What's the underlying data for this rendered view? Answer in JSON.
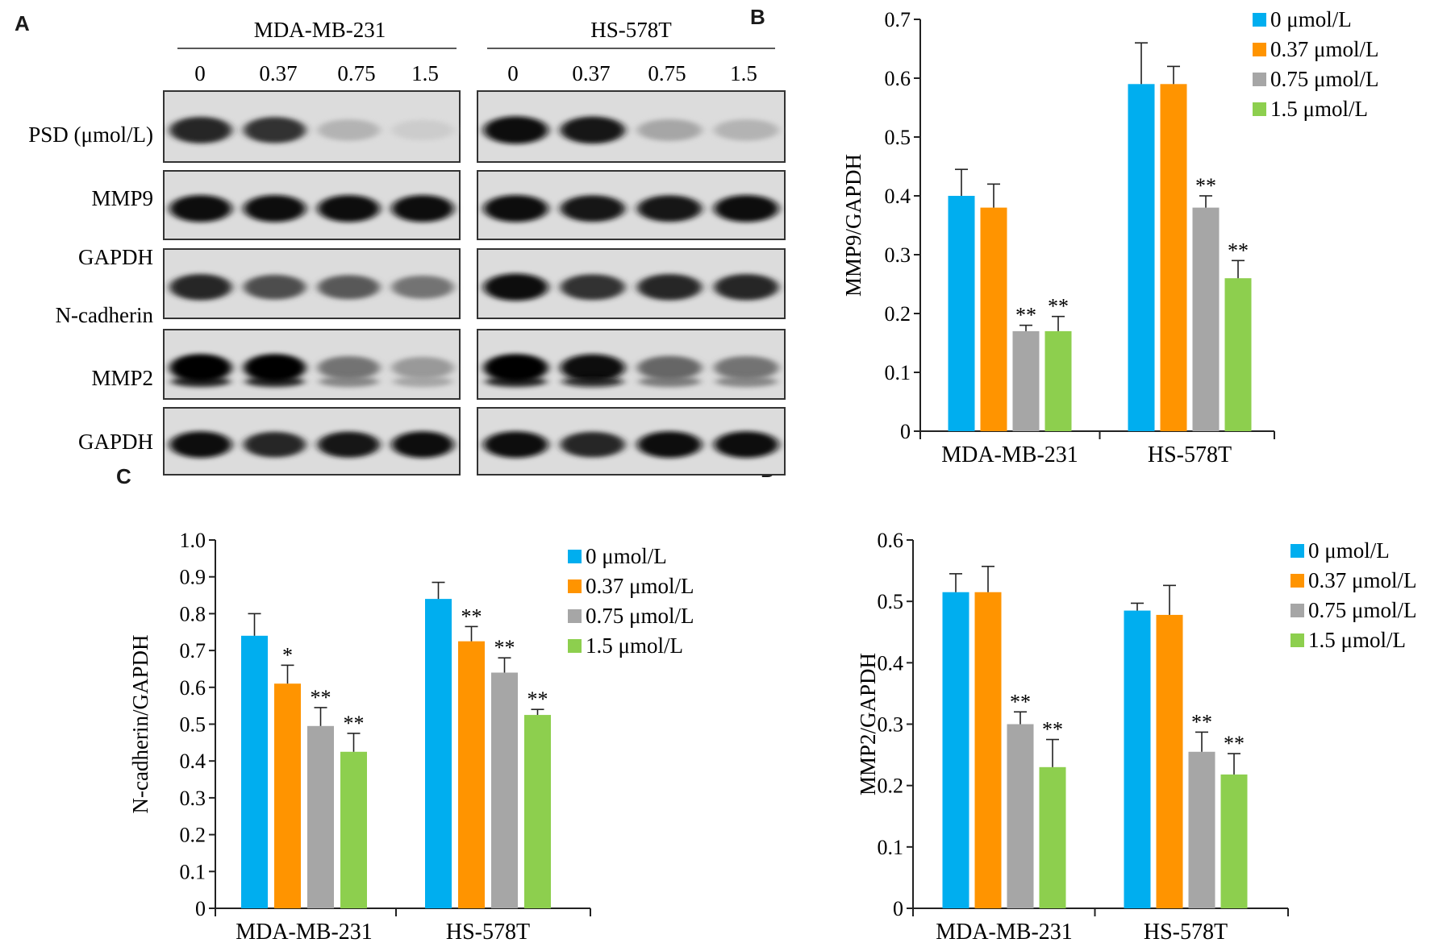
{
  "panel_letters": {
    "a": "A",
    "b": "B",
    "c": "C",
    "d": "D"
  },
  "blot": {
    "groups": [
      "MDA-MB-231",
      "HS-578T"
    ],
    "lanes": [
      "0",
      "0.37",
      "0.75",
      "1.5"
    ],
    "row_labels": [
      "PSD (μmol/L)",
      "MMP9",
      "GAPDH",
      "N-cadherin",
      "MMP2",
      "GAPDH"
    ],
    "rows": [
      {
        "intensity": [
          [
            0.85,
            0.8,
            0.3,
            0.2
          ],
          [
            0.95,
            0.9,
            0.35,
            0.3
          ]
        ]
      },
      {
        "intensity": [
          [
            0.95,
            0.95,
            0.95,
            0.95
          ],
          [
            0.95,
            0.9,
            0.9,
            0.95
          ]
        ]
      },
      {
        "intensity": [
          [
            0.85,
            0.7,
            0.65,
            0.55
          ],
          [
            0.95,
            0.8,
            0.85,
            0.85
          ]
        ]
      },
      {
        "intensity": [
          [
            1.0,
            1.0,
            0.55,
            0.4
          ],
          [
            1.0,
            0.95,
            0.6,
            0.55
          ]
        ]
      },
      {
        "intensity": [
          [
            0.95,
            0.85,
            0.9,
            0.95
          ],
          [
            0.95,
            0.85,
            0.95,
            0.95
          ]
        ]
      }
    ]
  },
  "colors": {
    "series": [
      "#00aeef",
      "#ff9400",
      "#a6a6a6",
      "#8dcf4e"
    ]
  },
  "legend": [
    "0 μmol/L",
    "0.37 μmol/L",
    "0.75 μmol/L",
    "1.5 μmol/L"
  ],
  "chart_data": [
    {
      "id": "B",
      "type": "bar",
      "categories": [
        "MDA-MB-231",
        "HS-578T"
      ],
      "ylabel": "MMP9/GAPDH",
      "ylim": [
        0,
        0.7
      ],
      "yticks": [
        "0",
        "0.1",
        "0.2",
        "0.3",
        "0.4",
        "0.5",
        "0.6",
        "0.7"
      ],
      "legend_position": "top-right",
      "series": [
        {
          "name": "0 μmol/L",
          "values": [
            0.4,
            0.59
          ],
          "errors": [
            0.045,
            0.07
          ]
        },
        {
          "name": "0.37 μmol/L",
          "values": [
            0.38,
            0.59
          ],
          "errors": [
            0.04,
            0.03
          ]
        },
        {
          "name": "0.75 μmol/L",
          "values": [
            0.17,
            0.38
          ],
          "errors": [
            0.01,
            0.02
          ]
        },
        {
          "name": "1.5 μmol/L",
          "values": [
            0.17,
            0.26
          ],
          "errors": [
            0.025,
            0.03
          ]
        }
      ],
      "significance": [
        [
          "",
          ""
        ],
        [
          "",
          ""
        ],
        [
          "**",
          "**"
        ],
        [
          "**",
          "**"
        ]
      ]
    },
    {
      "id": "C",
      "type": "bar",
      "categories": [
        "MDA-MB-231",
        "HS-578T"
      ],
      "ylabel": "N-cadherin/GAPDH",
      "ylim": [
        0,
        1.0
      ],
      "yticks": [
        "0",
        "0.1",
        "0.2",
        "0.3",
        "0.4",
        "0.5",
        "0.6",
        "0.7",
        "0.8",
        "0.9",
        "1.0"
      ],
      "legend_position": "top-right",
      "series": [
        {
          "name": "0 μmol/L",
          "values": [
            0.74,
            0.84
          ],
          "errors": [
            0.06,
            0.045
          ]
        },
        {
          "name": "0.37 μmol/L",
          "values": [
            0.61,
            0.725
          ],
          "errors": [
            0.05,
            0.04
          ]
        },
        {
          "name": "0.75 μmol/L",
          "values": [
            0.495,
            0.64
          ],
          "errors": [
            0.05,
            0.04
          ]
        },
        {
          "name": "1.5 μmol/L",
          "values": [
            0.425,
            0.525
          ],
          "errors": [
            0.05,
            0.015
          ]
        }
      ],
      "significance": [
        [
          "",
          ""
        ],
        [
          "*",
          "**"
        ],
        [
          "**",
          "**"
        ],
        [
          "**",
          "**"
        ]
      ]
    },
    {
      "id": "D",
      "type": "bar",
      "categories": [
        "MDA-MB-231",
        "HS-578T"
      ],
      "ylabel": "MMP2/GAPDH",
      "ylim": [
        0,
        0.6
      ],
      "yticks": [
        "0",
        "0.1",
        "0.2",
        "0.3",
        "0.4",
        "0.5",
        "0.6"
      ],
      "legend_position": "top-right",
      "series": [
        {
          "name": "0 μmol/L",
          "values": [
            0.515,
            0.485
          ],
          "errors": [
            0.03,
            0.012
          ]
        },
        {
          "name": "0.37 μmol/L",
          "values": [
            0.515,
            0.478
          ],
          "errors": [
            0.042,
            0.048
          ]
        },
        {
          "name": "0.75 μmol/L",
          "values": [
            0.3,
            0.255
          ],
          "errors": [
            0.02,
            0.032
          ]
        },
        {
          "name": "1.5 μmol/L",
          "values": [
            0.23,
            0.218
          ],
          "errors": [
            0.045,
            0.034
          ]
        }
      ],
      "significance": [
        [
          "",
          ""
        ],
        [
          "",
          ""
        ],
        [
          "**",
          "**"
        ],
        [
          "**",
          "**"
        ]
      ]
    }
  ]
}
